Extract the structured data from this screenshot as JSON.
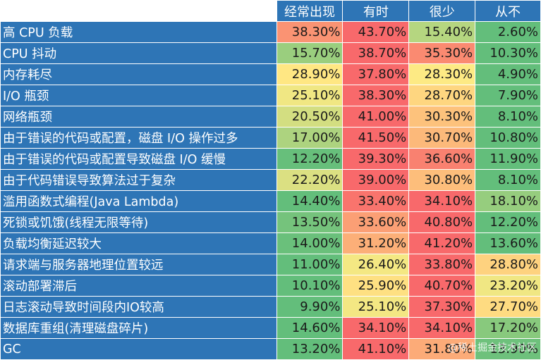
{
  "chart_data": {
    "type": "table",
    "columns": [
      "经常出现",
      "有时",
      "很少",
      "从不"
    ],
    "rows": [
      {
        "label": "高 CPU 负载",
        "values": [
          "38.30%",
          "43.70%",
          "15.40%",
          "2.60%"
        ]
      },
      {
        "label": "CPU 抖动",
        "values": [
          "15.70%",
          "38.70%",
          "35.30%",
          "10.30%"
        ]
      },
      {
        "label": "内存耗尽",
        "values": [
          "28.90%",
          "37.80%",
          "28.30%",
          "4.90%"
        ]
      },
      {
        "label": "I/O 瓶颈",
        "values": [
          "25.10%",
          "38.30%",
          "28.70%",
          "7.90%"
        ]
      },
      {
        "label": "网络瓶颈",
        "values": [
          "20.50%",
          "41.00%",
          "30.30%",
          "8.10%"
        ]
      },
      {
        "label": "由于错误的代码或配置，磁盘 I/O 操作过多",
        "values": [
          "17.00%",
          "41.50%",
          "30.70%",
          "10.80%"
        ]
      },
      {
        "label": "由于错误的代码或配置导致磁盘 I/O 缓慢",
        "values": [
          "12.20%",
          "39.30%",
          "36.60%",
          "11.90%"
        ]
      },
      {
        "label": "由于代码错误导致算法过于复杂",
        "values": [
          "22.20%",
          "39.00%",
          "30.80%",
          "8.10%"
        ]
      },
      {
        "label": "滥用函数式编程(Java Lambda)",
        "values": [
          "14.40%",
          "33.40%",
          "34.10%",
          "18.10%"
        ]
      },
      {
        "label": "死锁或饥饿(线程无限等待)",
        "values": [
          "13.50%",
          "33.60%",
          "40.80%",
          "12.20%"
        ]
      },
      {
        "label": "负载均衡延迟较大",
        "values": [
          "14.00%",
          "31.20%",
          "41.20%",
          "13.60%"
        ]
      },
      {
        "label": "请求端与服务器地理位置较远",
        "values": [
          "11.00%",
          "26.40%",
          "33.80%",
          "28.80%"
        ]
      },
      {
        "label": "滚动部署滞后",
        "values": [
          "10.10%",
          "25.90%",
          "40.70%",
          "23.20%"
        ]
      },
      {
        "label": "日志滚动导致时间段内IO较高",
        "values": [
          "9.90%",
          "25.10%",
          "37.30%",
          "27.70%"
        ]
      },
      {
        "label": "数据库重组(清理磁盘碎片)",
        "values": [
          "14.60%",
          "34.10%",
          "34.10%",
          "17.20%"
        ]
      },
      {
        "label": "GC",
        "values": [
          "13.20%",
          "41.10%",
          "31.80%",
          "13.90%"
        ]
      }
    ],
    "colors": {
      "header_bg": "#2e75b6",
      "high": "#f8696b",
      "mid": "#ffeb84",
      "low": "#63be7b"
    }
  },
  "watermark": "@稀土掘金技术社区"
}
